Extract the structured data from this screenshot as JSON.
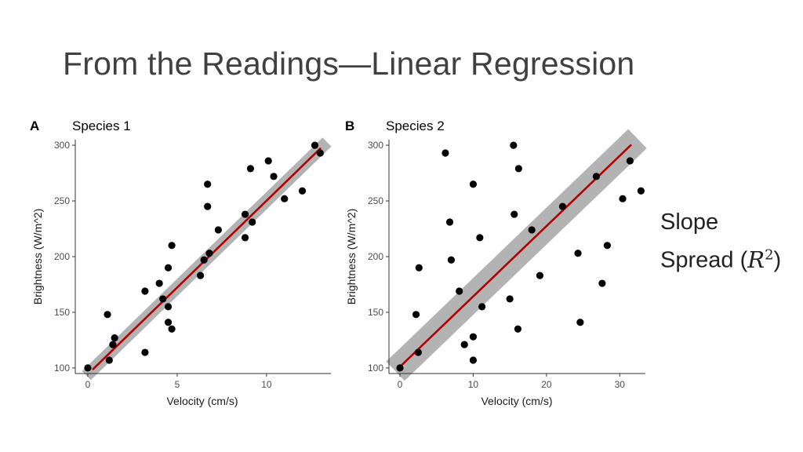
{
  "slide": {
    "title": "From the Readings—Linear Regression",
    "side_note": {
      "line1": "Slope",
      "line2_prefix": "Spread (",
      "line2_var": "R",
      "line2_exp": "2",
      "line2_suffix": ")"
    }
  },
  "colors": {
    "point": "#000000",
    "fit_line": "#b30000",
    "confidence_band": "#b3b3b3",
    "axis": "#333333",
    "title_text": "#404040"
  },
  "chart_data": [
    {
      "type": "scatter",
      "panel_label": "A",
      "title": "Species 1",
      "xlabel": "Velocity (cm/s)",
      "ylabel": "Brightness (W/m^2)",
      "xlim": [
        -0.7,
        13.6
      ],
      "ylim": [
        95,
        305
      ],
      "x_ticks": [
        0,
        5,
        10
      ],
      "y_ticks": [
        100,
        150,
        200,
        250,
        300
      ],
      "grid": false,
      "points": [
        [
          0,
          100
        ],
        [
          1.1,
          148
        ],
        [
          1.2,
          107
        ],
        [
          1.4,
          121
        ],
        [
          1.5,
          127
        ],
        [
          3.2,
          169
        ],
        [
          3.2,
          114
        ],
        [
          4.0,
          176
        ],
        [
          4.2,
          162
        ],
        [
          4.5,
          190
        ],
        [
          4.5,
          155
        ],
        [
          4.5,
          141
        ],
        [
          4.7,
          210
        ],
        [
          4.7,
          135
        ],
        [
          6.3,
          183
        ],
        [
          6.5,
          197
        ],
        [
          6.7,
          265
        ],
        [
          6.7,
          245
        ],
        [
          6.8,
          203
        ],
        [
          7.3,
          224
        ],
        [
          8.8,
          238
        ],
        [
          8.8,
          217
        ],
        [
          9.1,
          279
        ],
        [
          9.2,
          231
        ],
        [
          10.1,
          286
        ],
        [
          10.4,
          272
        ],
        [
          11.0,
          252
        ],
        [
          12.0,
          259
        ],
        [
          12.7,
          300
        ],
        [
          13.0,
          293
        ]
      ],
      "fit": {
        "x": [
          0.3,
          13.0
        ],
        "y": [
          99,
          297
        ]
      },
      "band_halfwidth": 8
    },
    {
      "type": "scatter",
      "panel_label": "B",
      "title": "Species 2",
      "xlabel": "Velocity (cm/s)",
      "ylabel": "Brightness (W/m^2)",
      "xlim": [
        -1.5,
        33.5
      ],
      "ylim": [
        95,
        305
      ],
      "x_ticks": [
        0,
        10,
        20,
        30
      ],
      "y_ticks": [
        100,
        150,
        200,
        250,
        300
      ],
      "grid": false,
      "points": [
        [
          0,
          100
        ],
        [
          2.2,
          148
        ],
        [
          2.5,
          114
        ],
        [
          2.6,
          190
        ],
        [
          6.2,
          293
        ],
        [
          6.8,
          231
        ],
        [
          7.0,
          197
        ],
        [
          8.1,
          169
        ],
        [
          8.8,
          121
        ],
        [
          10.0,
          265
        ],
        [
          10.0,
          128
        ],
        [
          10.0,
          107
        ],
        [
          10.9,
          217
        ],
        [
          11.2,
          155
        ],
        [
          15.0,
          162
        ],
        [
          15.5,
          300
        ],
        [
          15.6,
          238
        ],
        [
          16.1,
          135
        ],
        [
          16.2,
          279
        ],
        [
          18.0,
          224
        ],
        [
          19.1,
          183
        ],
        [
          22.2,
          245
        ],
        [
          24.3,
          203
        ],
        [
          24.6,
          141
        ],
        [
          26.8,
          272
        ],
        [
          27.6,
          176
        ],
        [
          28.3,
          210
        ],
        [
          30.4,
          252
        ],
        [
          31.4,
          286
        ],
        [
          32.9,
          259
        ]
      ],
      "fit": {
        "x": [
          0.3,
          31.5
        ],
        "y": [
          103,
          300
        ]
      },
      "band_halfwidth": 17
    }
  ]
}
